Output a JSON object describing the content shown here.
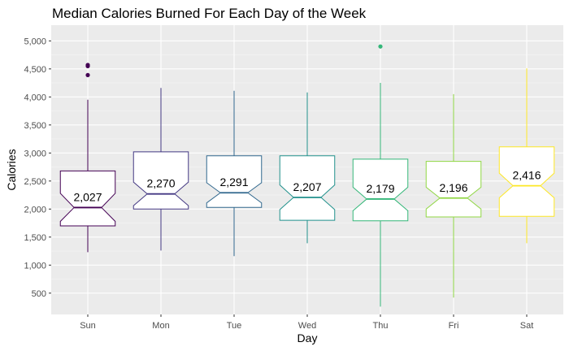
{
  "chart_data": {
    "type": "box",
    "title": "Median Calories Burned For Each Day of the Week",
    "xlabel": "Day",
    "ylabel": "Calories",
    "ylim": [
      120,
      5280
    ],
    "yticks": [
      500,
      1000,
      1500,
      2000,
      2500,
      3000,
      3500,
      4000,
      4500,
      5000
    ],
    "ytick_labels": [
      "500",
      "1,000",
      "1,500",
      "2,000",
      "2,500",
      "3,000",
      "3,500",
      "4,000",
      "4,500",
      "5,000"
    ],
    "grid": true,
    "notched": true,
    "legend": "none",
    "categories": [
      "Sun",
      "Mon",
      "Tue",
      "Wed",
      "Thu",
      "Fri",
      "Sat"
    ],
    "boxes": [
      {
        "category": "Sun",
        "color": "#440154",
        "whisker_low": 1230,
        "q1": 1700,
        "median": 2027,
        "q3": 2680,
        "whisker_high": 3950,
        "notch_low": 1780,
        "notch_high": 2280,
        "outliers": [
          4390,
          4550,
          4570
        ],
        "median_label": "2,027"
      },
      {
        "category": "Mon",
        "color": "#443983",
        "whisker_low": 1260,
        "q1": 2000,
        "median": 2270,
        "q3": 3020,
        "whisker_high": 4160,
        "notch_low": 2060,
        "notch_high": 2480,
        "outliers": [],
        "median_label": "2,270"
      },
      {
        "category": "Tue",
        "color": "#31688e",
        "whisker_low": 1160,
        "q1": 2030,
        "median": 2291,
        "q3": 2950,
        "whisker_high": 4110,
        "notch_low": 2110,
        "notch_high": 2470,
        "outliers": [],
        "median_label": "2,291"
      },
      {
        "category": "Wed",
        "color": "#21918c",
        "whisker_low": 1390,
        "q1": 1800,
        "median": 2207,
        "q3": 2950,
        "whisker_high": 4080,
        "notch_low": 1990,
        "notch_high": 2430,
        "outliers": [],
        "median_label": "2,207"
      },
      {
        "category": "Thu",
        "color": "#35b779",
        "whisker_low": 260,
        "q1": 1790,
        "median": 2179,
        "q3": 2890,
        "whisker_high": 4250,
        "notch_low": 1970,
        "notch_high": 2390,
        "outliers": [
          4900
        ],
        "median_label": "2,179"
      },
      {
        "category": "Fri",
        "color": "#90d743",
        "whisker_low": 420,
        "q1": 1860,
        "median": 2196,
        "q3": 2850,
        "whisker_high": 4050,
        "notch_low": 2000,
        "notch_high": 2390,
        "outliers": [],
        "median_label": "2,196"
      },
      {
        "category": "Sat",
        "color": "#fde725",
        "whisker_low": 1390,
        "q1": 1870,
        "median": 2416,
        "q3": 3110,
        "whisker_high": 4510,
        "notch_low": 2200,
        "notch_high": 2640,
        "outliers": [],
        "median_label": "2,416"
      }
    ]
  }
}
